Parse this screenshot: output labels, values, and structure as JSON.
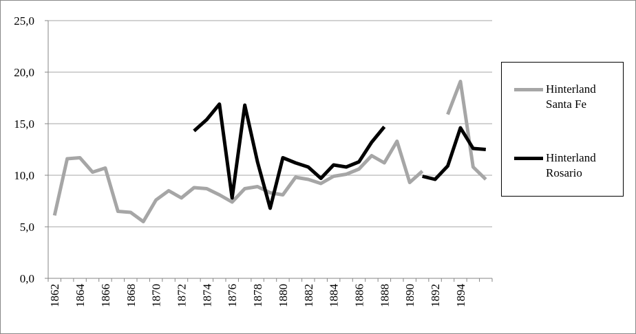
{
  "chart_data": {
    "type": "line",
    "categories": [
      "1862",
      null,
      "1864",
      null,
      "1866",
      null,
      "1868",
      null,
      "1870",
      null,
      "1872",
      null,
      "1874",
      null,
      "1876",
      null,
      "1878",
      null,
      "1880",
      null,
      "1882",
      null,
      "1884",
      null,
      "1886",
      null,
      "1888",
      null,
      "1890",
      null,
      "1892",
      null,
      "1894",
      null,
      null
    ],
    "series": [
      {
        "name": "Hinterland Santa Fe",
        "color": "#a6a6a6",
        "values": [
          6.1,
          11.6,
          11.7,
          10.3,
          10.7,
          6.5,
          6.4,
          5.5,
          7.6,
          8.5,
          7.8,
          8.8,
          8.7,
          8.1,
          7.4,
          8.7,
          8.9,
          8.3,
          8.1,
          9.8,
          9.6,
          9.2,
          9.9,
          10.1,
          10.6,
          11.9,
          11.2,
          13.3,
          9.3,
          10.4,
          null,
          15.9,
          19.1,
          10.8,
          9.6
        ]
      },
      {
        "name": "Hinterland Rosario",
        "color": "#000000",
        "values": [
          null,
          null,
          null,
          null,
          null,
          null,
          null,
          null,
          null,
          null,
          null,
          14.3,
          15.4,
          16.9,
          7.8,
          16.8,
          11.3,
          6.8,
          11.7,
          11.2,
          10.8,
          9.7,
          11.0,
          10.8,
          11.3,
          13.2,
          14.7,
          null,
          null,
          9.9,
          9.6,
          10.9,
          14.6,
          12.6,
          12.5
        ]
      }
    ],
    "ylim": [
      0,
      25
    ],
    "yticks": [
      {
        "value": 0,
        "label": "0,0"
      },
      {
        "value": 5,
        "label": "5,0"
      },
      {
        "value": 10,
        "label": "10,0"
      },
      {
        "value": 15,
        "label": "15,0"
      },
      {
        "value": 20,
        "label": "20,0"
      },
      {
        "value": 25,
        "label": "25,0"
      }
    ],
    "grid": true,
    "legend": "right"
  }
}
